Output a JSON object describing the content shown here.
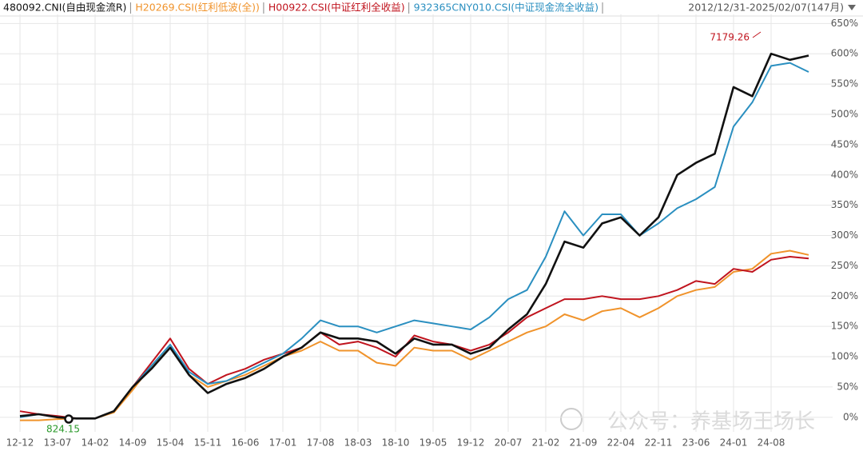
{
  "chart_data": {
    "type": "line",
    "date_range": "2012/12/31-2025/02/07(147月)",
    "watermark": "公众号：养基场王场长",
    "annotations": [
      {
        "text": "7179.26",
        "color": "#c0141e"
      },
      {
        "text": "824.15",
        "color": "#2a9a2a"
      }
    ],
    "categories": [
      "12-12",
      null,
      "13-07",
      null,
      "14-02",
      null,
      "14-09",
      null,
      "15-04",
      null,
      "15-11",
      null,
      "16-06",
      null,
      "17-01",
      null,
      "17-08",
      null,
      "18-03",
      null,
      "18-10",
      null,
      "19-05",
      null,
      "19-12",
      null,
      "20-07",
      null,
      "21-02",
      null,
      "21-09",
      null,
      "22-04",
      null,
      "22-11",
      null,
      "23-06",
      null,
      "24-01",
      null,
      "24-08",
      null,
      null
    ],
    "series": [
      {
        "name": "480092.CNI(自由现金流R)",
        "color": "#111111",
        "values": [
          2,
          5,
          0,
          -2,
          -2,
          10,
          50,
          80,
          115,
          70,
          40,
          55,
          65,
          80,
          100,
          115,
          140,
          130,
          130,
          125,
          105,
          130,
          120,
          120,
          105,
          115,
          145,
          170,
          220,
          290,
          280,
          320,
          330,
          300,
          330,
          400,
          420,
          435,
          545,
          530,
          600,
          590,
          597
        ]
      },
      {
        "name": "H20269.CSI(红利低波(全))",
        "color": "#f0932b",
        "values": [
          -5,
          -5,
          -3,
          -2,
          -2,
          8,
          45,
          85,
          115,
          70,
          50,
          60,
          70,
          85,
          100,
          110,
          125,
          110,
          110,
          90,
          85,
          115,
          110,
          110,
          95,
          110,
          125,
          140,
          150,
          170,
          160,
          175,
          180,
          165,
          180,
          200,
          210,
          215,
          240,
          245,
          270,
          275,
          268
        ]
      },
      {
        "name": "H00922.CSI(中证红利全收益)",
        "color": "#c0141e",
        "values": [
          10,
          5,
          2,
          -2,
          -2,
          10,
          50,
          90,
          130,
          80,
          55,
          70,
          80,
          95,
          105,
          115,
          140,
          120,
          125,
          115,
          100,
          135,
          125,
          120,
          110,
          120,
          140,
          165,
          180,
          195,
          195,
          200,
          195,
          195,
          200,
          210,
          225,
          220,
          245,
          240,
          260,
          265,
          262
        ]
      },
      {
        "name": "932365CNY010.CSI(中证现金流全收益)",
        "color": "#2a8fc0",
        "values": [
          0,
          5,
          0,
          -2,
          -2,
          10,
          50,
          85,
          120,
          75,
          55,
          60,
          75,
          90,
          105,
          130,
          160,
          150,
          150,
          140,
          150,
          160,
          155,
          150,
          145,
          165,
          195,
          210,
          265,
          340,
          300,
          335,
          335,
          300,
          320,
          345,
          360,
          380,
          480,
          520,
          580,
          585,
          570
        ]
      }
    ],
    "ylim": [
      -24,
      665
    ],
    "yticks": [
      {
        "value": 0,
        "label": "0%"
      },
      {
        "value": 50,
        "label": "50%"
      },
      {
        "value": 100,
        "label": "100%"
      },
      {
        "value": 150,
        "label": "150%"
      },
      {
        "value": 200,
        "label": "200%"
      },
      {
        "value": 250,
        "label": "250%"
      },
      {
        "value": 300,
        "label": "300%"
      },
      {
        "value": 350,
        "label": "350%"
      },
      {
        "value": 400,
        "label": "400%"
      },
      {
        "value": 450,
        "label": "450%"
      },
      {
        "value": 500,
        "label": "500%"
      },
      {
        "value": 550,
        "label": "550%"
      },
      {
        "value": 600,
        "label": "600%"
      },
      {
        "value": 650,
        "label": "650%"
      }
    ],
    "grid": true
  }
}
